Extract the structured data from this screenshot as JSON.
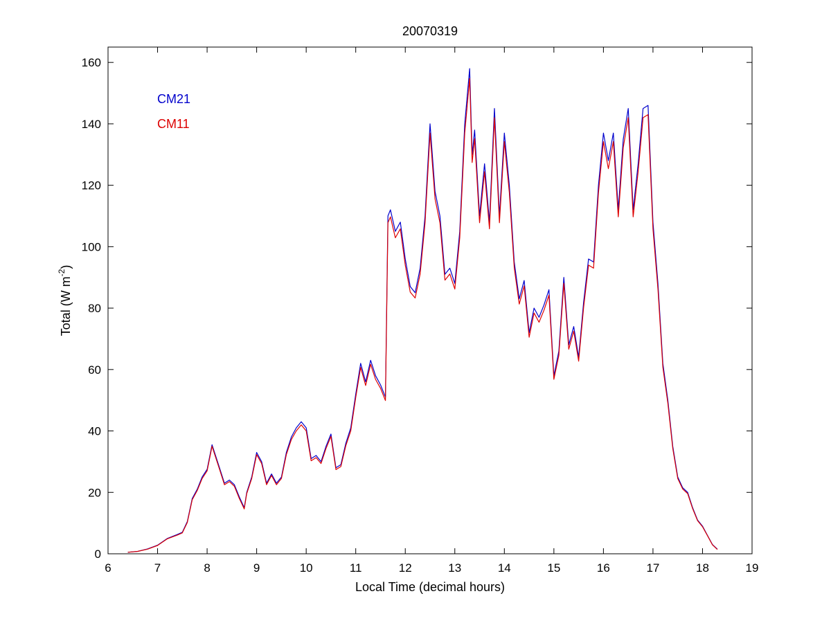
{
  "chart_data": {
    "type": "line",
    "title": "20070319",
    "xlabel": "Local Time (decimal hours)",
    "ylabel_main": "Total (W m",
    "ylabel_sup": "-2",
    "ylabel_close": ")",
    "xlim": [
      6,
      19
    ],
    "ylim": [
      0,
      165
    ],
    "xticks": [
      6,
      7,
      8,
      9,
      10,
      11,
      12,
      13,
      14,
      15,
      16,
      17,
      18,
      19
    ],
    "yticks": [
      0,
      20,
      40,
      60,
      80,
      100,
      120,
      140,
      160
    ],
    "grid": false,
    "legend_placement": "top-left",
    "series": [
      {
        "name": "CM21",
        "color": "#0000cc",
        "x": [
          6.4,
          6.6,
          6.8,
          7.0,
          7.2,
          7.4,
          7.5,
          7.6,
          7.7,
          7.8,
          7.9,
          8.0,
          8.1,
          8.15,
          8.25,
          8.35,
          8.45,
          8.55,
          8.65,
          8.75,
          8.8,
          8.9,
          9.0,
          9.1,
          9.2,
          9.3,
          9.4,
          9.5,
          9.6,
          9.7,
          9.8,
          9.9,
          10.0,
          10.1,
          10.2,
          10.3,
          10.4,
          10.5,
          10.6,
          10.7,
          10.8,
          10.9,
          11.0,
          11.1,
          11.2,
          11.3,
          11.4,
          11.5,
          11.6,
          11.65,
          11.7,
          11.8,
          11.9,
          12.0,
          12.1,
          12.2,
          12.3,
          12.4,
          12.5,
          12.6,
          12.7,
          12.8,
          12.9,
          13.0,
          13.1,
          13.2,
          13.3,
          13.35,
          13.4,
          13.5,
          13.6,
          13.7,
          13.8,
          13.9,
          14.0,
          14.1,
          14.2,
          14.3,
          14.4,
          14.5,
          14.6,
          14.7,
          14.8,
          14.9,
          15.0,
          15.1,
          15.2,
          15.3,
          15.4,
          15.5,
          15.6,
          15.7,
          15.8,
          15.9,
          16.0,
          16.1,
          16.2,
          16.3,
          16.4,
          16.5,
          16.6,
          16.7,
          16.8,
          16.9,
          17.0,
          17.1,
          17.2,
          17.3,
          17.4,
          17.5,
          17.6,
          17.7,
          17.8,
          17.9,
          18.0,
          18.1,
          18.2,
          18.3
        ],
        "y": [
          0.5,
          0.8,
          1.6,
          2.8,
          5.0,
          6.3,
          7.0,
          10.5,
          18.0,
          21.0,
          25.0,
          27.5,
          35.5,
          33.0,
          28.0,
          23.0,
          24.0,
          22.5,
          18.5,
          15.0,
          20.0,
          25.0,
          33.0,
          30.0,
          23.0,
          26.0,
          23.0,
          25.0,
          33.0,
          38.0,
          41.0,
          43.0,
          41.0,
          31.0,
          32.0,
          30.0,
          35.0,
          39.0,
          28.0,
          29.0,
          36.0,
          41.0,
          52.0,
          62.0,
          56.0,
          63.0,
          58.0,
          55.0,
          51.0,
          110.0,
          112.0,
          105.0,
          108.0,
          96.0,
          87.0,
          85.0,
          93.0,
          110.0,
          140.0,
          118.0,
          110.0,
          91.0,
          93.0,
          88.0,
          105.0,
          140.0,
          158.0,
          130.0,
          138.0,
          110.0,
          127.0,
          108.0,
          145.0,
          110.0,
          137.0,
          120.0,
          95.0,
          83.0,
          89.0,
          72.0,
          80.0,
          77.0,
          81.0,
          86.0,
          58.0,
          66.0,
          90.0,
          68.0,
          74.0,
          64.0,
          82.0,
          96.0,
          95.0,
          120.0,
          137.0,
          128.0,
          137.0,
          112.0,
          135.0,
          145.0,
          112.0,
          127.0,
          145.0,
          146.0,
          108.0,
          88.0,
          62.0,
          50.0,
          35.0,
          25.0,
          21.5,
          20.0,
          15.0,
          11.0,
          9.0,
          6.0,
          3.0,
          1.5
        ]
      },
      {
        "name": "CM11",
        "color": "#dd0000",
        "x": [
          6.4,
          6.6,
          6.8,
          7.0,
          7.2,
          7.4,
          7.5,
          7.6,
          7.7,
          7.8,
          7.9,
          8.0,
          8.1,
          8.15,
          8.25,
          8.35,
          8.45,
          8.55,
          8.65,
          8.75,
          8.8,
          8.9,
          9.0,
          9.1,
          9.2,
          9.3,
          9.4,
          9.5,
          9.6,
          9.7,
          9.8,
          9.9,
          10.0,
          10.1,
          10.2,
          10.3,
          10.4,
          10.5,
          10.6,
          10.7,
          10.8,
          10.9,
          11.0,
          11.1,
          11.2,
          11.3,
          11.4,
          11.5,
          11.6,
          11.65,
          11.7,
          11.8,
          11.9,
          12.0,
          12.1,
          12.2,
          12.3,
          12.4,
          12.5,
          12.6,
          12.7,
          12.8,
          12.9,
          13.0,
          13.1,
          13.2,
          13.3,
          13.35,
          13.4,
          13.5,
          13.6,
          13.7,
          13.8,
          13.9,
          14.0,
          14.1,
          14.2,
          14.3,
          14.4,
          14.5,
          14.6,
          14.7,
          14.8,
          14.9,
          15.0,
          15.1,
          15.2,
          15.3,
          15.4,
          15.5,
          15.6,
          15.7,
          15.8,
          15.9,
          16.0,
          16.1,
          16.2,
          16.3,
          16.4,
          16.5,
          16.6,
          16.7,
          16.8,
          16.9,
          17.0,
          17.1,
          17.2,
          17.3,
          17.4,
          17.5,
          17.6,
          17.7,
          17.8,
          17.9,
          18.0,
          18.1,
          18.2,
          18.3
        ],
        "y": [
          0.5,
          0.8,
          1.5,
          2.7,
          4.9,
          6.1,
          6.8,
          10.2,
          17.6,
          20.6,
          24.5,
          27.0,
          35.0,
          32.5,
          27.5,
          22.5,
          23.5,
          22.0,
          18.0,
          14.6,
          19.6,
          24.5,
          32.3,
          29.4,
          22.5,
          25.5,
          22.5,
          24.5,
          32.3,
          37.2,
          40.0,
          42.0,
          40.0,
          30.3,
          31.3,
          29.4,
          34.3,
          38.2,
          27.4,
          28.4,
          35.2,
          40.0,
          50.9,
          60.7,
          54.8,
          61.7,
          56.8,
          53.9,
          49.9,
          107.8,
          109.7,
          102.9,
          105.8,
          94.0,
          85.2,
          83.3,
          91.1,
          107.8,
          137.0,
          115.6,
          107.8,
          89.1,
          91.1,
          86.2,
          102.9,
          137.0,
          154.8,
          127.4,
          135.2,
          107.8,
          124.4,
          105.8,
          142.0,
          107.8,
          134.2,
          117.6,
          93.1,
          81.3,
          87.2,
          70.5,
          78.4,
          75.4,
          79.3,
          84.2,
          56.8,
          64.6,
          88.1,
          66.6,
          72.5,
          62.7,
          80.3,
          94.0,
          93.0,
          117.6,
          134.2,
          125.4,
          134.2,
          109.7,
          132.3,
          142.0,
          109.7,
          124.4,
          142.0,
          143.0,
          105.8,
          86.2,
          60.7,
          49.0,
          34.3,
          24.5,
          21.1,
          19.6,
          14.7,
          10.8,
          8.8,
          5.9,
          2.9,
          1.4
        ]
      }
    ]
  }
}
